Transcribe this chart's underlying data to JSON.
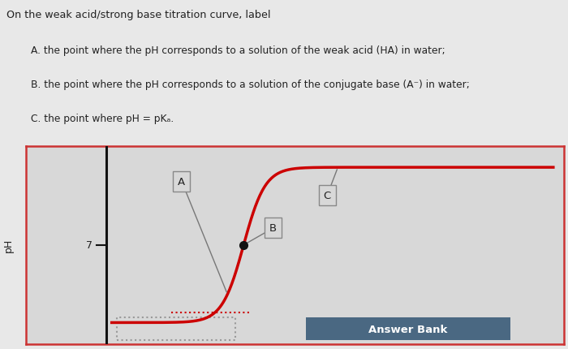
{
  "title_text": "On the weak acid/strong base titration curve, label",
  "line_a": "A. the point where the pH corresponds to a solution of the weak acid (HA) in water;",
  "line_b": "B. the point where the pH corresponds to a solution of the conjugate base (A⁻) in water;",
  "line_c": "C. the point where pH = pKₐ.",
  "curve_color": "#cc0000",
  "axis_line_color": "#111111",
  "background_top": "#e8e8e8",
  "background_chart": "#d8d8d8",
  "border_color": "#cc3333",
  "answer_bank_bg": "#4a6882",
  "answer_bank_text": "Answer Bank",
  "label_A": "A",
  "label_B": "B",
  "label_C": "C",
  "ph_tick_label": "7",
  "ylabel": "pH",
  "text_color": "#222222",
  "label_box_bg": "#d8d8d8",
  "label_box_edge": "#888888",
  "connector_color": "#777777",
  "dot_color": "#111111"
}
